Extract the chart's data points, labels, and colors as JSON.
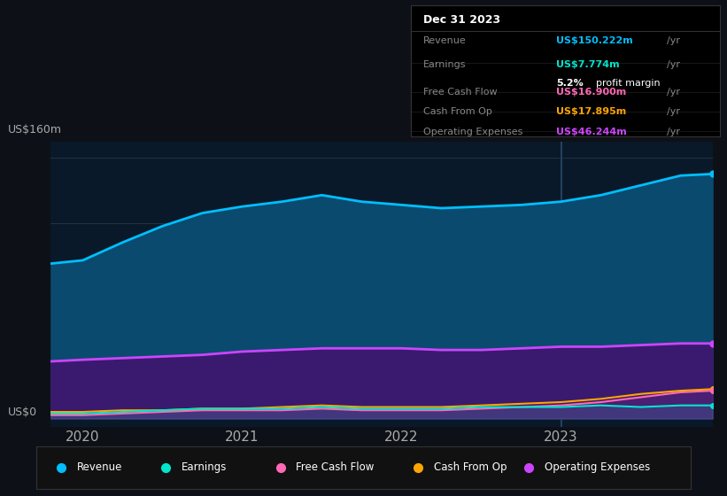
{
  "bg_color": "#0d1117",
  "plot_area_color": "#0a1929",
  "grid_color": "#1e3a4a",
  "ylabel_text": "US$160m",
  "ylabel0_text": "US$0",
  "x_ticks": [
    2020,
    2021,
    2022,
    2023
  ],
  "ylim": [
    -5,
    170
  ],
  "years": [
    2019.8,
    2020.0,
    2020.25,
    2020.5,
    2020.75,
    2021.0,
    2021.25,
    2021.5,
    2021.75,
    2022.0,
    2022.25,
    2022.5,
    2022.75,
    2023.0,
    2023.25,
    2023.5,
    2023.75,
    2023.95
  ],
  "revenue": [
    95,
    97,
    108,
    118,
    126,
    130,
    133,
    137,
    133,
    131,
    129,
    130,
    131,
    133,
    137,
    143,
    149,
    150
  ],
  "operating_expenses": [
    35,
    36,
    37,
    38,
    39,
    41,
    42,
    43,
    43,
    43,
    42,
    42,
    43,
    44,
    44,
    45,
    46,
    46
  ],
  "free_cash_flow": [
    2,
    2,
    3,
    4,
    5,
    5,
    5,
    6,
    5,
    5,
    5,
    6,
    7,
    8,
    10,
    13,
    16,
    17
  ],
  "earnings": [
    3,
    3,
    4,
    5,
    6,
    6,
    6,
    7,
    6,
    6,
    6,
    7,
    7,
    7,
    8,
    7,
    8,
    8
  ],
  "cash_from_op": [
    4,
    4,
    5,
    5,
    6,
    6,
    7,
    8,
    7,
    7,
    7,
    8,
    9,
    10,
    12,
    15,
    17,
    18
  ],
  "revenue_color": "#00bfff",
  "revenue_fill": "#0a4a6e",
  "earnings_color": "#00e5cc",
  "fcf_color": "#ff69b4",
  "cashop_color": "#ffa500",
  "opex_color": "#cc44ff",
  "opex_fill": "#3a1a6e",
  "legend_labels": [
    "Revenue",
    "Earnings",
    "Free Cash Flow",
    "Cash From Op",
    "Operating Expenses"
  ],
  "legend_colors": [
    "#00bfff",
    "#00e5cc",
    "#ff69b4",
    "#ffa500",
    "#cc44ff"
  ],
  "grid_hlines": [
    0,
    40,
    80,
    120,
    160
  ],
  "info_box": {
    "date": "Dec 31 2023",
    "rows": [
      {
        "label": "Revenue",
        "value": "US$150.222m",
        "unit": "/yr",
        "value_color": "#00bfff",
        "sub": null
      },
      {
        "label": "Earnings",
        "value": "US$7.774m",
        "unit": "/yr",
        "value_color": "#00e5cc",
        "sub": "5.2% profit margin"
      },
      {
        "label": "Free Cash Flow",
        "value": "US$16.900m",
        "unit": "/yr",
        "value_color": "#ff69b4",
        "sub": null
      },
      {
        "label": "Cash From Op",
        "value": "US$17.895m",
        "unit": "/yr",
        "value_color": "#ffa500",
        "sub": null
      },
      {
        "label": "Operating Expenses",
        "value": "US$46.244m",
        "unit": "/yr",
        "value_color": "#cc44ff",
        "sub": null
      }
    ]
  }
}
